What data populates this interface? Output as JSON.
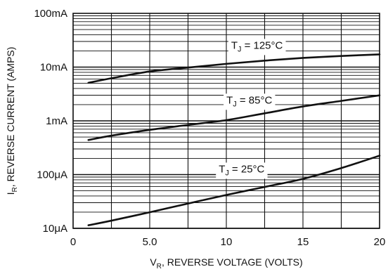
{
  "chart_data": {
    "type": "line",
    "title": "",
    "xlabel": "V_R, REVERSE VOLTAGE (VOLTS)",
    "xlabel_parts": {
      "main": "V",
      "sub": "R",
      "rest": ", REVERSE VOLTAGE (VOLTS)"
    },
    "ylabel": "I_R, REVERSE CURRENT (AMPS)",
    "ylabel_parts": {
      "main": "I",
      "sub": "R",
      "rest": ", REVERSE CURRENT (AMPS)"
    },
    "xlim": [
      0,
      20
    ],
    "ylim": [
      1e-05,
      0.1
    ],
    "y_scale": "log",
    "grid": true,
    "x_ticks": [
      0,
      5,
      10,
      15,
      20
    ],
    "x_tick_labels": [
      "0",
      "5.0",
      "10",
      "15",
      "20"
    ],
    "y_ticks": [
      1e-05,
      0.0001,
      0.001,
      0.01,
      0.1
    ],
    "y_tick_labels": [
      "10μA",
      "100μA",
      "1mA",
      "10mA",
      "100mA"
    ],
    "line_color": "#111111",
    "series": [
      {
        "name": "T_J = 125°C",
        "label_parts": {
          "main": "T",
          "sub": "J",
          "rest": " = 125°C"
        },
        "label_at": {
          "x": 12,
          "y": 0.024
        },
        "x": [
          1,
          2.5,
          5,
          7.5,
          10,
          12.5,
          15,
          17.5,
          20
        ],
        "values": [
          0.0051,
          0.0062,
          0.0083,
          0.0098,
          0.0115,
          0.0132,
          0.0148,
          0.0161,
          0.0172
        ]
      },
      {
        "name": "T_J = 85°C",
        "label_parts": {
          "main": "T",
          "sub": "J",
          "rest": " = 85°C"
        },
        "label_at": {
          "x": 11.5,
          "y": 0.0023
        },
        "x": [
          1,
          2.5,
          5,
          7.5,
          10,
          12.5,
          15,
          17.5,
          20
        ],
        "values": [
          0.00044,
          0.00053,
          0.00068,
          0.00084,
          0.00103,
          0.00138,
          0.00185,
          0.00235,
          0.00298
        ]
      },
      {
        "name": "T_J = 25°C",
        "label_parts": {
          "main": "T",
          "sub": "J",
          "rest": " = 25°C"
        },
        "label_at": {
          "x": 11,
          "y": 0.00012
        },
        "x": [
          1,
          2.5,
          5,
          7.5,
          10,
          12.5,
          15,
          17.5,
          20
        ],
        "values": [
          1.14e-05,
          1.39e-05,
          1.99e-05,
          2.89e-05,
          4.18e-05,
          5.89e-05,
          8.32e-05,
          0.000132,
          0.000225
        ]
      }
    ]
  }
}
